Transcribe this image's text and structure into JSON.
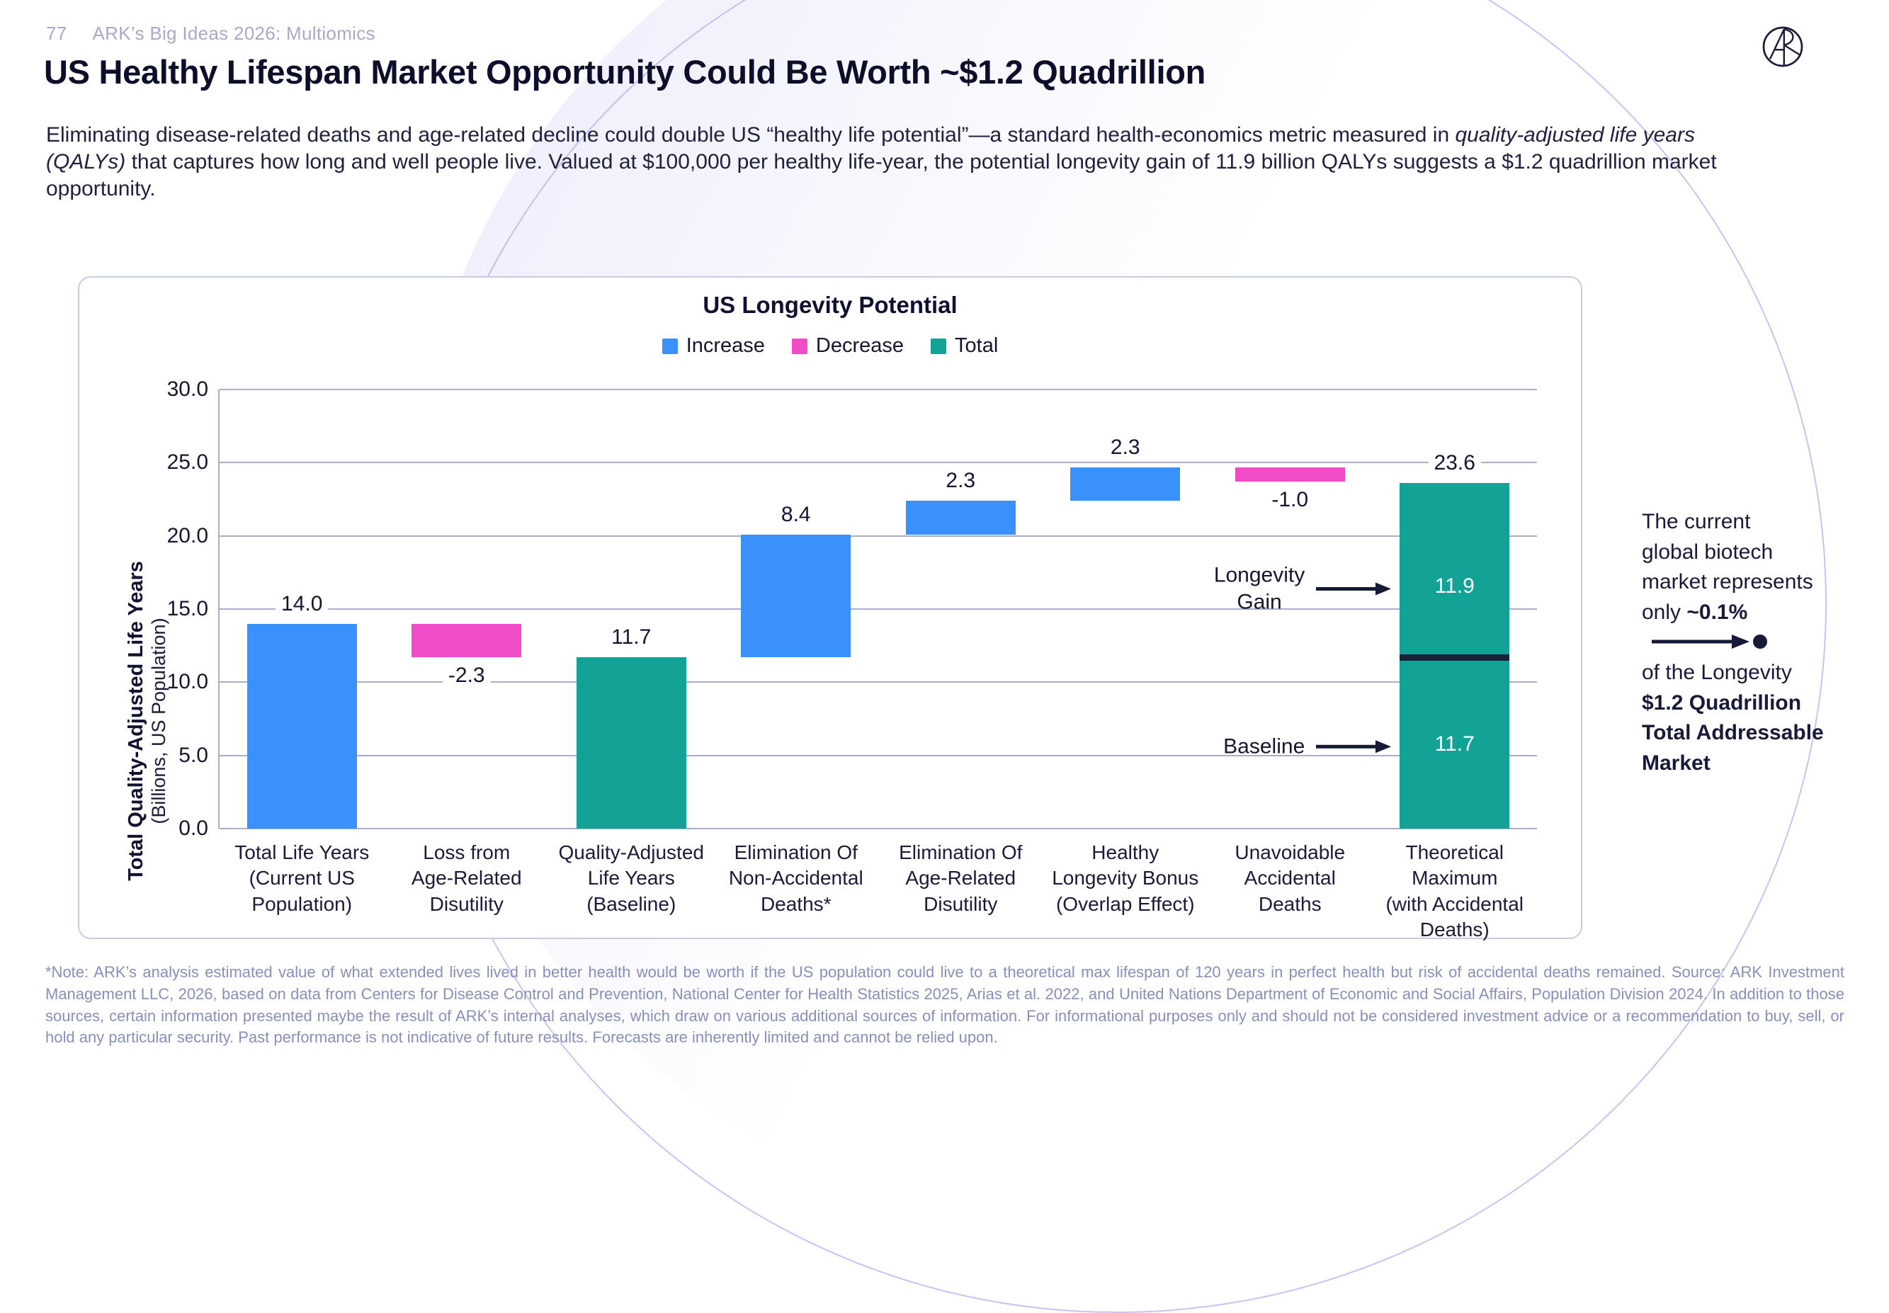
{
  "header": {
    "page_number": "77",
    "deck_title": "ARK’s Big Ideas 2026: Multiomics"
  },
  "title": "US Healthy Lifespan Market Opportunity Could Be Worth ~$1.2 Quadrillion",
  "intro": {
    "pre_italic": "Eliminating disease-related deaths and age-related decline could double US “healthy life potential”—a standard health-economics metric measured in ",
    "italic": "quality-adjusted life years (QALYs)",
    "post_italic": " that captures how long and well people live. Valued at $100,000 per healthy life-year, the potential longevity gain of 11.9 billion QALYs suggests a $1.2 quadrillion market opportunity."
  },
  "side_note": {
    "pre": "The current\nglobal biotech\nmarket represents\nonly ",
    "bold_pct": "~0.1%",
    "mid": "\nof the Longevity\n",
    "bold_tam": "$1.2 Quadrillion\nTotal Addressable\nMarket"
  },
  "footnote": "*Note: ARK’s analysis estimated value of what extended lives lived in better health would be worth if the US population could live to a theoretical max lifespan of 120 years in perfect health but risk of accidental deaths remained. Source: ARK Investment Management LLC, 2026, based on data from Centers for Disease Control and Prevention, National Center for Health Statistics 2025, Arias et al. 2022, and United Nations Department of Economic and Social Affairs, Population Division 2024. In addition to those sources, certain information presented maybe the result of ARK’s internal analyses, which draw on various additional sources of information. For informational purposes only and should not be considered investment advice or a recommendation to buy, sell, or hold any particular security. Past performance is not indicative of future results. Forecasts are inherently limited and cannot be relied upon.",
  "chart_data": {
    "type": "bar",
    "subtype": "waterfall",
    "title": "US Longevity Potential",
    "ylabel": "Total Quality-Adjusted Life Years",
    "ylabel_sub": "(Billions, US Population)",
    "ylim": [
      0,
      30
    ],
    "grid": true,
    "legend_position": "top",
    "colors": {
      "increase": "#3B91FC",
      "decrease": "#F04CC8",
      "total": "#12A296",
      "divider": "#1A2038"
    },
    "legend": [
      {
        "label": "Increase",
        "type": "increase"
      },
      {
        "label": "Decrease",
        "type": "decrease"
      },
      {
        "label": "Total",
        "type": "total"
      }
    ],
    "yticks": [
      {
        "v": 0,
        "label": "0.0"
      },
      {
        "v": 5,
        "label": "5.0"
      },
      {
        "v": 10,
        "label": "10.0"
      },
      {
        "v": 15,
        "label": "15.0"
      },
      {
        "v": 20,
        "label": "20.0"
      },
      {
        "v": 25,
        "label": "25.0"
      },
      {
        "v": 30,
        "label": "30.0"
      }
    ],
    "bars": [
      {
        "category": "Total Life Years\n(Current US\nPopulation)",
        "value": 14.0,
        "label": "14.0",
        "start": 0,
        "end": 14.0,
        "type": "increase",
        "label_pos": "above"
      },
      {
        "category": "Loss from\nAge-Related\nDisutility",
        "value": -2.3,
        "label": "-2.3",
        "start": 11.7,
        "end": 14.0,
        "type": "decrease",
        "label_pos": "below"
      },
      {
        "category": "Quality-Adjusted\nLife Years\n(Baseline)",
        "value": 11.7,
        "label": "11.7",
        "start": 0,
        "end": 11.7,
        "type": "total",
        "label_pos": "above"
      },
      {
        "category": "Elimination Of\nNon-Accidental\nDeaths*",
        "value": 8.4,
        "label": "8.4",
        "start": 11.7,
        "end": 20.1,
        "type": "increase",
        "label_pos": "above"
      },
      {
        "category": "Elimination Of\nAge-Related\nDisutility",
        "value": 2.3,
        "label": "2.3",
        "start": 20.1,
        "end": 22.4,
        "type": "increase",
        "label_pos": "above"
      },
      {
        "category": "Healthy\nLongevity Bonus\n(Overlap Effect)",
        "value": 2.3,
        "label": "2.3",
        "start": 22.4,
        "end": 24.7,
        "type": "increase",
        "label_pos": "above"
      },
      {
        "category": "Unavoidable\nAccidental\nDeaths",
        "value": -1.0,
        "label": "-1.0",
        "start": 23.7,
        "end": 24.7,
        "type": "decrease",
        "label_pos": "below"
      },
      {
        "category": "Theoretical\nMaximum\n(with Accidental\nDeaths)",
        "value": 23.6,
        "label": "23.6",
        "start": 0,
        "end": 23.6,
        "type": "total",
        "label_pos": "above",
        "divider_value": 11.7,
        "inner_labels": [
          {
            "text": "11.9",
            "v": 16.4
          },
          {
            "text": "11.7",
            "v": 5.6
          }
        ]
      }
    ],
    "annotations": [
      {
        "text": "Longevity\nGain",
        "v": 16.4
      },
      {
        "text": "Baseline",
        "v": 5.6
      }
    ]
  }
}
